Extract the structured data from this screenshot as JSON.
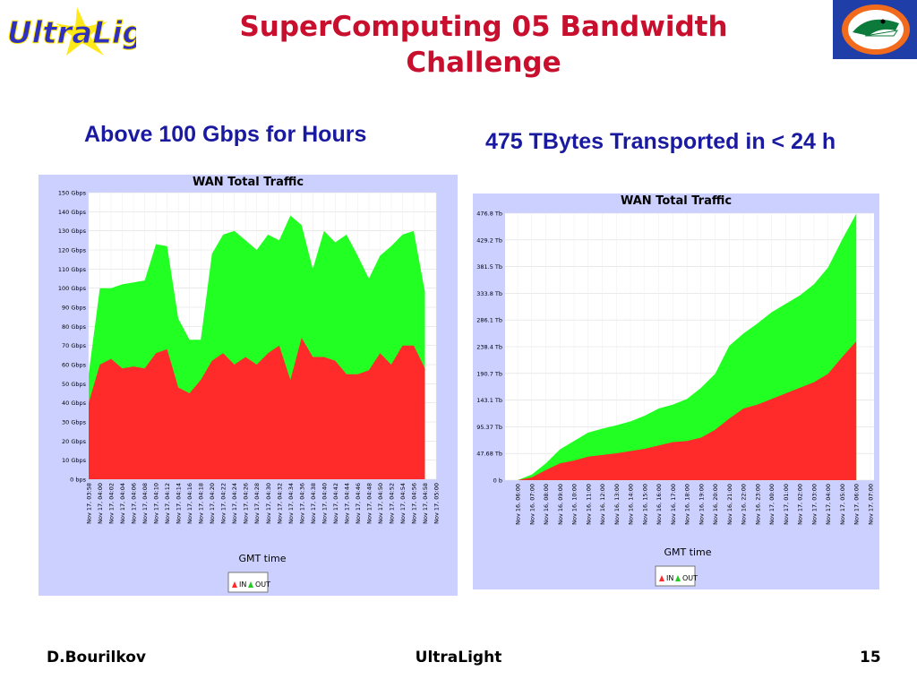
{
  "slide": {
    "title_line1": "SuperComputing 05 Bandwidth",
    "title_line2": "Challenge",
    "logo_left_text": "UltraLight",
    "subtitle_left": "Above 100 Gbps for Hours",
    "subtitle_right": "475 TBytes Transported in < 24 h",
    "footer_left": "D.Bourilkov",
    "footer_center": "UltraLight",
    "footer_right": "15"
  },
  "colors": {
    "in": "#ff2a2a",
    "out": "#22ff22",
    "title": "#c8102e",
    "subtitle": "#1a1aa0",
    "panel": "#ccd0ff"
  },
  "chart_data": [
    {
      "type": "area",
      "title": "WAN Total Traffic",
      "xlabel": "GMT time",
      "ylabel": "",
      "ylim": [
        0,
        150
      ],
      "yticks": [
        "0 bps",
        "10 Gbps",
        "20 Gbps",
        "30 Gbps",
        "40 Gbps",
        "50 Gbps",
        "60 Gbps",
        "70 Gbps",
        "80 Gbps",
        "90 Gbps",
        "100 Gbps",
        "110 Gbps",
        "120 Gbps",
        "130 Gbps",
        "140 Gbps",
        "150 Gbps"
      ],
      "x": [
        "Nov 17, 03:58",
        "Nov 17, 04:00",
        "Nov 17, 04:02",
        "Nov 17, 04:04",
        "Nov 17, 04:06",
        "Nov 17, 04:08",
        "Nov 17, 04:10",
        "Nov 17, 04:12",
        "Nov 17, 04:14",
        "Nov 17, 04:16",
        "Nov 17, 04:18",
        "Nov 17, 04:20",
        "Nov 17, 04:22",
        "Nov 17, 04:24",
        "Nov 17, 04:26",
        "Nov 17, 04:28",
        "Nov 17, 04:30",
        "Nov 17, 04:32",
        "Nov 17, 04:34",
        "Nov 17, 04:36",
        "Nov 17, 04:38",
        "Nov 17, 04:40",
        "Nov 17, 04:42",
        "Nov 17, 04:44",
        "Nov 17, 04:46",
        "Nov 17, 04:48",
        "Nov 17, 04:50",
        "Nov 17, 04:52",
        "Nov 17, 04:54",
        "Nov 17, 04:56",
        "Nov 17, 04:58",
        "Nov 17, 05:00"
      ],
      "series": [
        {
          "name": "IN",
          "values": [
            40,
            60,
            63,
            58,
            59,
            58,
            66,
            68,
            48,
            45,
            52,
            62,
            66,
            60,
            64,
            60,
            66,
            70,
            52,
            74,
            64,
            64,
            62,
            55,
            55,
            57,
            66,
            60,
            70,
            70,
            58,
            null
          ]
        },
        {
          "name": "OUT",
          "values": [
            55,
            100,
            100,
            102,
            103,
            104,
            123,
            122,
            84,
            73,
            73,
            118,
            128,
            130,
            125,
            120,
            128,
            125,
            138,
            133,
            110,
            130,
            124,
            128,
            117,
            105,
            117,
            122,
            128,
            130,
            98,
            null
          ]
        }
      ],
      "legend": "bottom"
    },
    {
      "type": "area",
      "title": "WAN Total Traffic",
      "xlabel": "GMT time",
      "ylabel": "",
      "ylim": [
        0,
        476.8
      ],
      "yticks": [
        "0 b",
        "47.68 Tb",
        "95.37 Tb",
        "143.1 Tb",
        "190.7 Tb",
        "238.4 Tb",
        "286.1 Tb",
        "333.8 Tb",
        "381.5 Tb",
        "429.2 Tb",
        "476.8 Tb"
      ],
      "x": [
        "Nov 16, 06:00",
        "Nov 16, 07:00",
        "Nov 16, 08:00",
        "Nov 16, 09:00",
        "Nov 16, 10:00",
        "Nov 16, 11:00",
        "Nov 16, 12:00",
        "Nov 16, 13:00",
        "Nov 16, 14:00",
        "Nov 16, 15:00",
        "Nov 16, 16:00",
        "Nov 16, 17:00",
        "Nov 16, 18:00",
        "Nov 16, 19:00",
        "Nov 16, 20:00",
        "Nov 16, 21:00",
        "Nov 16, 22:00",
        "Nov 16, 23:00",
        "Nov 17, 00:00",
        "Nov 17, 01:00",
        "Nov 17, 02:00",
        "Nov 17, 03:00",
        "Nov 17, 04:00",
        "Nov 17, 05:00",
        "Nov 17, 06:00",
        "Nov 17, 07:00"
      ],
      "series": [
        {
          "name": "IN",
          "values": [
            0,
            5,
            18,
            30,
            35,
            42,
            45,
            48,
            52,
            56,
            62,
            68,
            70,
            76,
            90,
            110,
            128,
            135,
            145,
            155,
            165,
            175,
            190,
            220,
            248,
            null
          ]
        },
        {
          "name": "OUT",
          "values": [
            0,
            10,
            30,
            55,
            70,
            85,
            92,
            98,
            105,
            115,
            128,
            135,
            145,
            165,
            190,
            240,
            262,
            280,
            300,
            315,
            330,
            350,
            380,
            430,
            476,
            null
          ]
        }
      ],
      "legend": "bottom"
    }
  ]
}
